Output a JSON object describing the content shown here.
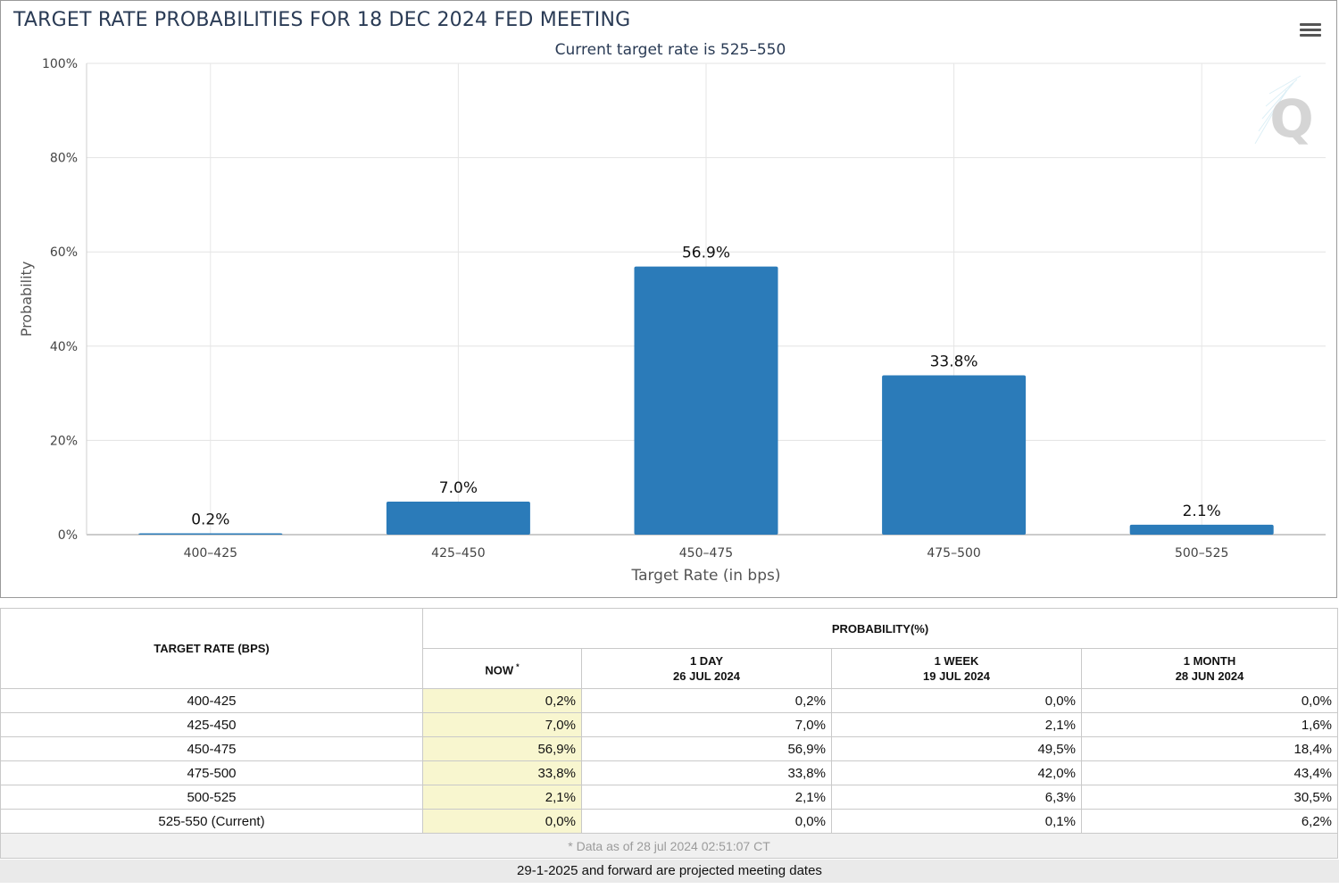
{
  "chart": {
    "title": "TARGET RATE PROBABILITIES FOR 18 DEC 2024 FED MEETING",
    "subtitle": "Current target rate is 525–550",
    "menu_icon": "hamburger-menu-icon",
    "watermark_icon": "q-logo-icon",
    "watermark_text": "Q"
  },
  "chart_data": {
    "type": "bar",
    "categories": [
      "400–425",
      "425–450",
      "450–475",
      "475–500",
      "500–525"
    ],
    "values": [
      0.2,
      7.0,
      56.9,
      33.8,
      2.1
    ],
    "data_labels": [
      "0.2%",
      "7.0%",
      "56.9%",
      "33.8%",
      "2.1%"
    ],
    "xlabel": "Target Rate (in bps)",
    "ylabel": "Probability",
    "ylim": [
      0,
      100
    ],
    "yticks": [
      0,
      20,
      40,
      60,
      80,
      100
    ],
    "ytick_labels": [
      "0%",
      "20%",
      "40%",
      "60%",
      "80%",
      "100%"
    ],
    "bar_color": "#2b7bb9",
    "grid": true
  },
  "table": {
    "rate_header": "TARGET RATE (BPS)",
    "prob_header": "PROBABILITY(%)",
    "columns": [
      {
        "line1": "NOW",
        "sup": "*",
        "line2": ""
      },
      {
        "line1": "1 DAY",
        "line2": "26 JUL 2024"
      },
      {
        "line1": "1 WEEK",
        "line2": "19 JUL 2024"
      },
      {
        "line1": "1 MONTH",
        "line2": "28 JUN 2024"
      }
    ],
    "rows": [
      {
        "rate": "400-425",
        "now": "0,2%",
        "day": "0,2%",
        "week": "0,0%",
        "month": "0,0%"
      },
      {
        "rate": "425-450",
        "now": "7,0%",
        "day": "7,0%",
        "week": "2,1%",
        "month": "1,6%"
      },
      {
        "rate": "450-475",
        "now": "56,9%",
        "day": "56,9%",
        "week": "49,5%",
        "month": "18,4%"
      },
      {
        "rate": "475-500",
        "now": "33,8%",
        "day": "33,8%",
        "week": "42,0%",
        "month": "43,4%"
      },
      {
        "rate": "500-525",
        "now": "2,1%",
        "day": "2,1%",
        "week": "6,3%",
        "month": "30,5%"
      },
      {
        "rate": "525-550 (Current)",
        "now": "0,0%",
        "day": "0,0%",
        "week": "0,1%",
        "month": "6,2%"
      }
    ],
    "footnote": "* Data as of 28 jul 2024 02:51:07 CT",
    "now_highlight_color": "#f8f6cf"
  },
  "projected_note": "29-1-2025 and forward are projected meeting dates"
}
